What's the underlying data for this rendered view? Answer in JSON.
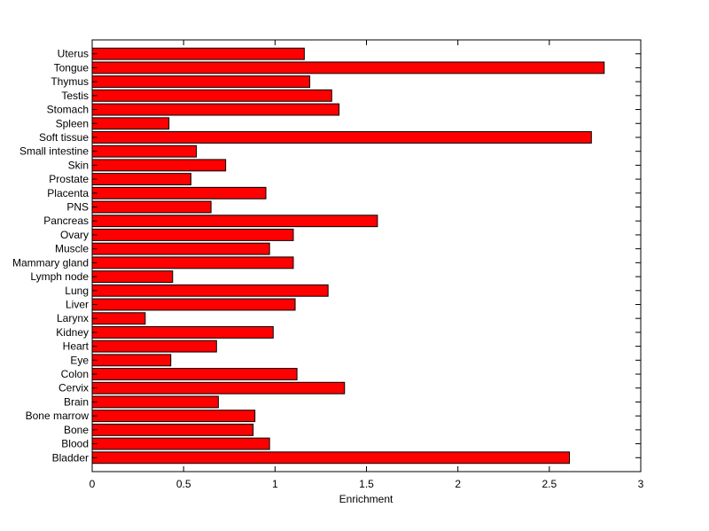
{
  "chart_data": {
    "type": "bar",
    "orientation": "horizontal",
    "title": "",
    "xlabel": "Enrichment",
    "ylabel": "",
    "xlim": [
      0,
      3
    ],
    "xticks": [
      "0",
      "0.5",
      "1",
      "1.5",
      "2",
      "2.5",
      "3"
    ],
    "grid": false,
    "bar_color": "#ff0000",
    "categories": [
      "Uterus",
      "Tongue",
      "Thymus",
      "Testis",
      "Stomach",
      "Spleen",
      "Soft tissue",
      "Small intestine",
      "Skin",
      "Prostate",
      "Placenta",
      "PNS",
      "Pancreas",
      "Ovary",
      "Muscle",
      "Mammary gland",
      "Lymph node",
      "Lung",
      "Liver",
      "Larynx",
      "Kidney",
      "Heart",
      "Eye",
      "Colon",
      "Cervix",
      "Brain",
      "Bone marrow",
      "Bone",
      "Blood",
      "Bladder"
    ],
    "values": [
      1.16,
      2.8,
      1.19,
      1.31,
      1.35,
      0.42,
      2.73,
      0.57,
      0.73,
      0.54,
      0.95,
      0.65,
      1.56,
      1.1,
      0.97,
      1.1,
      0.44,
      1.29,
      1.11,
      0.29,
      0.99,
      0.68,
      0.43,
      1.12,
      1.38,
      0.69,
      0.89,
      0.88,
      0.97,
      2.61
    ]
  }
}
